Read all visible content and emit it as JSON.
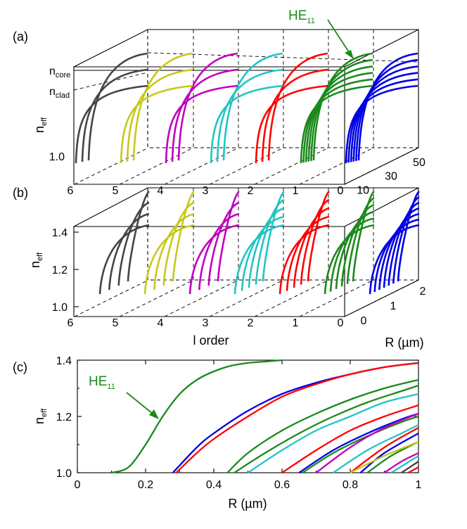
{
  "colors": {
    "0": "#0000e6",
    "1": "#1a8a1a",
    "2": "#ff0000",
    "3": "#22c4c4",
    "4": "#c000c0",
    "5": "#c8c81a",
    "6": "#444444",
    "annotation": "#1a8a1a"
  },
  "chart_data": [
    {
      "panel": "(a)",
      "type": "line",
      "view": "3d-waterfall",
      "ylabel": "neff",
      "ylabel_main": "n",
      "ylabel_sub": "eff",
      "x_axis": {
        "label": "",
        "ticks": [
          "6",
          "5",
          "4",
          "3",
          "2",
          "1",
          "0"
        ]
      },
      "depth_axis": {
        "label": "",
        "ticks": [
          "10",
          "30",
          "50"
        ]
      },
      "y_axis": {
        "ticks": [
          "1.0"
        ],
        "marks": [
          {
            "main": "n",
            "sub": "core"
          },
          {
            "main": "n",
            "sub": "clad"
          }
        ]
      },
      "annotation": {
        "main": "HE",
        "sub": "11"
      },
      "series": [
        {
          "l": 0,
          "curves": 6
        },
        {
          "l": 1,
          "curves": 6
        },
        {
          "l": 2,
          "curves": 3
        },
        {
          "l": 3,
          "curves": 3
        },
        {
          "l": 4,
          "curves": 3
        },
        {
          "l": 5,
          "curves": 3
        },
        {
          "l": 6,
          "curves": 3
        }
      ]
    },
    {
      "panel": "(b)",
      "type": "line",
      "view": "3d-waterfall",
      "ylabel": "neff",
      "ylabel_main": "n",
      "ylabel_sub": "eff",
      "x_axis": {
        "label": "l order",
        "ticks": [
          "6",
          "5",
          "4",
          "3",
          "2",
          "1",
          "0"
        ]
      },
      "depth_axis": {
        "label": "R (µm)",
        "ticks": [
          "0",
          "1",
          "2"
        ]
      },
      "y_axis": {
        "ticks": [
          "1.0",
          "1.2",
          "1.4"
        ],
        "range": [
          1.0,
          1.45
        ]
      },
      "series": [
        {
          "l": 0,
          "curves": 7
        },
        {
          "l": 1,
          "curves": 6
        },
        {
          "l": 2,
          "curves": 5
        },
        {
          "l": 3,
          "curves": 5
        },
        {
          "l": 4,
          "curves": 4
        },
        {
          "l": 5,
          "curves": 4
        },
        {
          "l": 6,
          "curves": 4
        }
      ]
    },
    {
      "panel": "(c)",
      "type": "line",
      "xlabel": "R (µm)",
      "ylabel": "neff",
      "ylabel_main": "n",
      "ylabel_sub": "eff",
      "xlim": [
        0,
        1
      ],
      "ylim": [
        1.0,
        1.4
      ],
      "xticks": [
        "0",
        "0.2",
        "0.4",
        "0.6",
        "0.8",
        "1"
      ],
      "yticks": [
        "1.0",
        "1.2",
        "1.4"
      ],
      "annotation": {
        "main": "HE",
        "sub": "11",
        "points_to": [
          0.24,
          1.16
        ]
      },
      "series": [
        {
          "l": 1,
          "x": [
            0.1,
            0.15,
            0.2,
            0.25,
            0.3,
            0.35,
            0.4,
            0.45,
            0.5,
            0.55,
            0.6
          ],
          "y": [
            1.0,
            1.02,
            1.1,
            1.2,
            1.28,
            1.33,
            1.36,
            1.38,
            1.39,
            1.395,
            1.4
          ]
        },
        {
          "l": 0,
          "x": [
            0.28,
            0.35,
            0.4,
            0.5,
            0.6,
            0.7,
            0.8,
            0.9,
            1.0
          ],
          "y": [
            1.0,
            1.09,
            1.14,
            1.22,
            1.28,
            1.32,
            1.35,
            1.375,
            1.39
          ]
        },
        {
          "l": 2,
          "x": [
            0.29,
            0.35,
            0.4,
            0.5,
            0.6,
            0.7,
            0.8,
            0.9,
            1.0
          ],
          "y": [
            1.0,
            1.07,
            1.12,
            1.2,
            1.27,
            1.315,
            1.35,
            1.375,
            1.39
          ]
        },
        {
          "l": 1,
          "x": [
            0.44,
            0.5,
            0.6,
            0.7,
            0.8,
            0.9,
            1.0
          ],
          "y": [
            1.0,
            1.07,
            1.15,
            1.21,
            1.26,
            1.3,
            1.33
          ]
        },
        {
          "l": 1,
          "x": [
            0.46,
            0.55,
            0.65,
            0.75,
            0.85,
            0.95,
            1.0
          ],
          "y": [
            1.0,
            1.07,
            1.14,
            1.2,
            1.25,
            1.29,
            1.31
          ]
        },
        {
          "l": 3,
          "x": [
            0.5,
            0.6,
            0.7,
            0.8,
            0.9,
            1.0
          ],
          "y": [
            1.0,
            1.08,
            1.15,
            1.2,
            1.25,
            1.28
          ]
        },
        {
          "l": 2,
          "x": [
            0.6,
            0.7,
            0.8,
            0.9,
            1.0
          ],
          "y": [
            1.0,
            1.08,
            1.15,
            1.2,
            1.24
          ]
        },
        {
          "l": 0,
          "x": [
            0.65,
            0.75,
            0.85,
            0.95,
            1.0
          ],
          "y": [
            1.0,
            1.08,
            1.14,
            1.19,
            1.21
          ]
        },
        {
          "l": 1,
          "x": [
            0.66,
            0.75,
            0.85,
            0.95,
            1.0
          ],
          "y": [
            1.0,
            1.07,
            1.13,
            1.18,
            1.2
          ]
        },
        {
          "l": 4,
          "x": [
            0.7,
            0.8,
            0.9,
            1.0
          ],
          "y": [
            1.0,
            1.09,
            1.16,
            1.21
          ]
        },
        {
          "l": 3,
          "x": [
            0.75,
            0.85,
            0.95,
            1.0
          ],
          "y": [
            1.0,
            1.08,
            1.14,
            1.17
          ]
        },
        {
          "l": 2,
          "x": [
            0.8,
            0.9,
            1.0
          ],
          "y": [
            1.0,
            1.09,
            1.16
          ]
        },
        {
          "l": 0,
          "x": [
            0.83,
            0.9,
            1.0
          ],
          "y": [
            1.0,
            1.07,
            1.14
          ]
        },
        {
          "l": 1,
          "x": [
            0.85,
            0.92,
            1.0
          ],
          "y": [
            1.0,
            1.06,
            1.11
          ]
        },
        {
          "l": 5,
          "x": [
            0.8,
            0.9,
            1.0
          ],
          "y": [
            1.0,
            1.06,
            1.11
          ]
        },
        {
          "l": 4,
          "x": [
            0.9,
            0.95,
            1.0
          ],
          "y": [
            1.0,
            1.04,
            1.07
          ]
        },
        {
          "l": 3,
          "x": [
            0.92,
            1.0
          ],
          "y": [
            1.0,
            1.06
          ]
        },
        {
          "l": 6,
          "x": [
            0.95,
            1.0
          ],
          "y": [
            1.0,
            1.04
          ]
        },
        {
          "l": 2,
          "x": [
            0.97,
            1.0
          ],
          "y": [
            1.0,
            1.02
          ]
        }
      ]
    }
  ]
}
